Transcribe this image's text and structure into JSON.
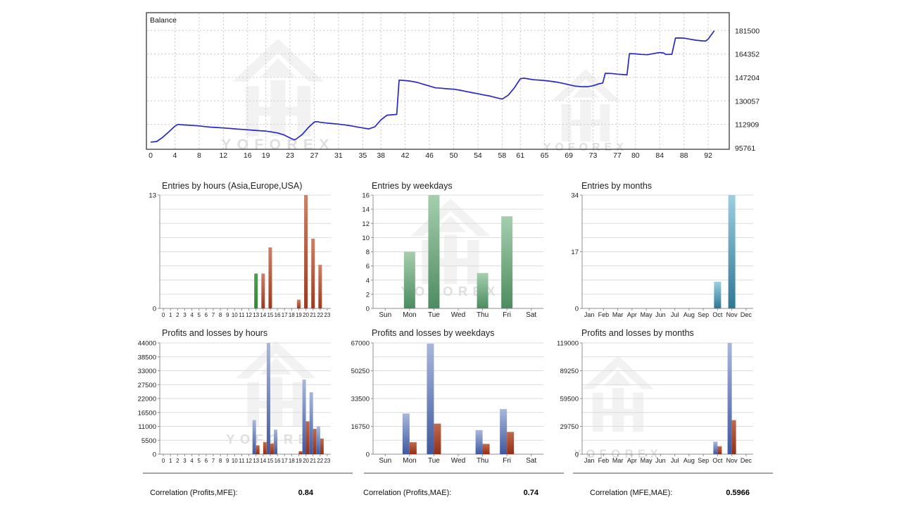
{
  "watermark": {
    "text": "YOFOREX"
  },
  "colors": {
    "balance_line": "#2828c8",
    "grid": "#dcdcdc",
    "gradients": {
      "green": [
        "#4aa04a",
        "#2f8a2f"
      ],
      "brick": [
        "#cd8166",
        "#9c3a20"
      ],
      "green2": [
        "#a5cfae",
        "#4c8c60"
      ],
      "teal": [
        "#9ccfe0",
        "#2d7795"
      ],
      "plblue": [
        "#a8b8dc",
        "#3f58a0"
      ],
      "plred": [
        "#c06a4c",
        "#942e14"
      ]
    }
  },
  "chart_data": {
    "note": "see balance_chart and six bar chart objects below"
  },
  "balance_chart": {
    "type": "line",
    "label": "Balance",
    "y_ticks": [
      95761,
      112909,
      130057,
      147204,
      164352,
      181500
    ],
    "x_ticks": [
      0,
      4,
      8,
      12,
      16,
      19,
      23,
      27,
      31,
      35,
      38,
      42,
      46,
      50,
      54,
      58,
      61,
      65,
      69,
      73,
      77,
      80,
      84,
      88,
      92
    ],
    "points": [
      [
        0,
        100000
      ],
      [
        1,
        100400
      ],
      [
        2,
        103500
      ],
      [
        3,
        107500
      ],
      [
        4,
        111600
      ],
      [
        4.5,
        112900
      ],
      [
        5,
        112700
      ],
      [
        6,
        112400
      ],
      [
        7,
        112100
      ],
      [
        8,
        111800
      ],
      [
        9,
        111300
      ],
      [
        10,
        110900
      ],
      [
        11,
        110600
      ],
      [
        12,
        110300
      ],
      [
        13,
        110000
      ],
      [
        14,
        109600
      ],
      [
        15,
        109300
      ],
      [
        16,
        109000
      ],
      [
        17,
        108600
      ],
      [
        18,
        108300
      ],
      [
        19,
        108000
      ],
      [
        20,
        107400
      ],
      [
        21,
        106600
      ],
      [
        22,
        105200
      ],
      [
        23,
        103000
      ],
      [
        23.7,
        101600
      ],
      [
        24,
        102200
      ],
      [
        25,
        105500
      ],
      [
        26,
        110500
      ],
      [
        27,
        114700
      ],
      [
        27.5,
        114900
      ],
      [
        28,
        114400
      ],
      [
        29,
        113900
      ],
      [
        30,
        113500
      ],
      [
        31,
        113100
      ],
      [
        32,
        112600
      ],
      [
        33,
        111900
      ],
      [
        34,
        111100
      ],
      [
        35,
        110300
      ],
      [
        36,
        109600
      ],
      [
        37,
        111200
      ],
      [
        38,
        116200
      ],
      [
        39,
        119600
      ],
      [
        40,
        120000
      ],
      [
        40.6,
        120200
      ],
      [
        41,
        145200
      ],
      [
        42,
        144900
      ],
      [
        43,
        144400
      ],
      [
        44,
        143600
      ],
      [
        45,
        142200
      ],
      [
        46,
        140900
      ],
      [
        47,
        139600
      ],
      [
        48,
        139300
      ],
      [
        49,
        138900
      ],
      [
        50,
        138600
      ],
      [
        51,
        137900
      ],
      [
        52,
        137000
      ],
      [
        53,
        136100
      ],
      [
        54,
        135300
      ],
      [
        55,
        134400
      ],
      [
        56,
        133600
      ],
      [
        57,
        132400
      ],
      [
        58,
        131400
      ],
      [
        59,
        134200
      ],
      [
        60,
        139500
      ],
      [
        61,
        146200
      ],
      [
        61.5,
        146600
      ],
      [
        62,
        146400
      ],
      [
        63,
        145600
      ],
      [
        64,
        145300
      ],
      [
        65,
        144900
      ],
      [
        66,
        144400
      ],
      [
        67,
        143800
      ],
      [
        68,
        142900
      ],
      [
        69,
        141900
      ],
      [
        70,
        140900
      ],
      [
        71,
        140500
      ],
      [
        72,
        140400
      ],
      [
        73,
        141100
      ],
      [
        74,
        142600
      ],
      [
        74.6,
        143100
      ],
      [
        75,
        150200
      ],
      [
        76,
        150100
      ],
      [
        77,
        149600
      ],
      [
        78,
        149300
      ],
      [
        78.6,
        149100
      ],
      [
        79,
        164600
      ],
      [
        80,
        164400
      ],
      [
        81,
        164000
      ],
      [
        82,
        163800
      ],
      [
        83,
        164600
      ],
      [
        84,
        165400
      ],
      [
        84.6,
        165100
      ],
      [
        85,
        164000
      ],
      [
        86,
        164100
      ],
      [
        86.6,
        175900
      ],
      [
        87,
        176000
      ],
      [
        88,
        175900
      ],
      [
        89,
        175100
      ],
      [
        90,
        174400
      ],
      [
        91,
        173900
      ],
      [
        91.6,
        173800
      ],
      [
        92,
        175200
      ],
      [
        93,
        181300
      ]
    ]
  },
  "entries_by_hours": {
    "type": "bar",
    "title": "Entries by hours (Asia,Europe,USA)",
    "categories": [
      "0",
      "1",
      "2",
      "3",
      "4",
      "5",
      "6",
      "7",
      "8",
      "9",
      "10",
      "11",
      "12",
      "13",
      "14",
      "15",
      "16",
      "17",
      "18",
      "19",
      "20",
      "21",
      "22",
      "23"
    ],
    "values": [
      0,
      0,
      0,
      0,
      0,
      0,
      0,
      0,
      0,
      0,
      0,
      0,
      0,
      4,
      4,
      7,
      0,
      0,
      0,
      1,
      13,
      8,
      5,
      0
    ],
    "palette": "brick",
    "color_overrides": {
      "13": "green"
    },
    "y_ticks": [
      0,
      13
    ]
  },
  "entries_by_weekdays": {
    "type": "bar",
    "title": "Entries by weekdays",
    "categories": [
      "Sun",
      "Mon",
      "Tue",
      "Wed",
      "Thu",
      "Fri",
      "Sat"
    ],
    "values": [
      0,
      8,
      16,
      0,
      5,
      13,
      0
    ],
    "palette": "green2",
    "y_ticks": [
      0,
      2,
      4,
      6,
      8,
      10,
      12,
      14,
      16
    ]
  },
  "entries_by_months": {
    "type": "bar",
    "title": "Entries by months",
    "categories": [
      "Jan",
      "Feb",
      "Mar",
      "Apr",
      "May",
      "Jun",
      "Jul",
      "Aug",
      "Sep",
      "Oct",
      "Nov",
      "Dec"
    ],
    "values": [
      0,
      0,
      0,
      0,
      0,
      0,
      0,
      0,
      0,
      8,
      34,
      0
    ],
    "palette": "teal",
    "y_ticks": [
      0,
      17,
      34
    ]
  },
  "pl_by_hours": {
    "type": "bar",
    "title": "Profits and losses by hours",
    "categories": [
      "0",
      "1",
      "2",
      "3",
      "4",
      "5",
      "6",
      "7",
      "8",
      "9",
      "10",
      "11",
      "12",
      "13",
      "14",
      "15",
      "16",
      "17",
      "18",
      "19",
      "20",
      "21",
      "22",
      "23"
    ],
    "profit": [
      0,
      0,
      0,
      0,
      0,
      0,
      0,
      0,
      0,
      0,
      0,
      0,
      0,
      13500,
      0,
      44000,
      9700,
      0,
      0,
      0,
      29500,
      24500,
      11000,
      0
    ],
    "loss": [
      0,
      0,
      0,
      0,
      0,
      0,
      0,
      0,
      0,
      0,
      0,
      0,
      0,
      3500,
      4800,
      4200,
      0,
      0,
      0,
      1200,
      13000,
      10000,
      6200,
      0
    ],
    "y_ticks": [
      0,
      5500,
      11000,
      16500,
      22000,
      27500,
      33000,
      38500,
      44000
    ]
  },
  "pl_by_weekdays": {
    "type": "bar",
    "title": "Profits and losses by weekdays",
    "categories": [
      "Sun",
      "Mon",
      "Tue",
      "Wed",
      "Thu",
      "Fri",
      "Sat"
    ],
    "profit": [
      0,
      24500,
      66600,
      0,
      14500,
      27200,
      0
    ],
    "loss": [
      0,
      7200,
      18400,
      0,
      6200,
      13400,
      0
    ],
    "y_ticks": [
      0,
      16750,
      33500,
      50250,
      67000
    ]
  },
  "pl_by_months": {
    "type": "bar",
    "title": "Profits and losses by months",
    "categories": [
      "Jan",
      "Feb",
      "Mar",
      "Apr",
      "May",
      "Jun",
      "Jul",
      "Aug",
      "Sep",
      "Oct",
      "Nov",
      "Dec"
    ],
    "profit": [
      0,
      0,
      0,
      0,
      0,
      0,
      0,
      0,
      0,
      13400,
      119000,
      0
    ],
    "loss": [
      0,
      0,
      0,
      0,
      0,
      0,
      0,
      0,
      0,
      8500,
      36400,
      0
    ],
    "y_ticks": [
      0,
      29750,
      59500,
      89250,
      119000
    ]
  },
  "correlations": [
    {
      "label": "Correlation (Profits,MFE):",
      "value": "0.84"
    },
    {
      "label": "Correlation (Profits,MAE):",
      "value": "0.74"
    },
    {
      "label": "Correlation (MFE,MAE):",
      "value": "0.5966"
    }
  ]
}
